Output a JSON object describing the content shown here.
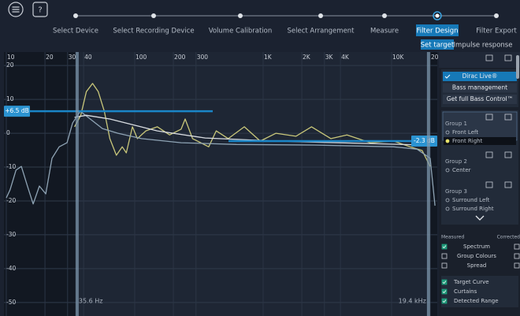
{
  "header": {
    "steps": [
      "Select Device",
      "Select Recording Device",
      "Volume Calibration",
      "Select Arrangement",
      "Measure",
      "Filter Design",
      "Filter Export"
    ],
    "active_step": 5
  },
  "tabs": [
    "Set target",
    "Impulse response"
  ],
  "active_tab": 0,
  "chart_data": {
    "type": "line",
    "xscale": "log",
    "xlim": [
      10,
      22700
    ],
    "ylim": [
      -54,
      24
    ],
    "grid": true,
    "xticks": [
      10,
      20,
      30,
      40,
      100,
      200,
      300,
      {
        "value": 1000,
        "label": "1K"
      },
      {
        "value": 2000,
        "label": "2K"
      },
      {
        "value": 3000,
        "label": "3K"
      },
      {
        "value": 4000,
        "label": "4K"
      },
      {
        "value": 10000,
        "label": "10K"
      },
      {
        "value": 20000,
        "label": "20K"
      }
    ],
    "yticks": [
      20,
      10,
      0,
      -10,
      -20,
      -30,
      -40,
      -50
    ],
    "series": [
      {
        "color": "#c9c77a",
        "x": [
          34,
          38,
          42,
          47,
          52,
          58,
          64,
          72,
          80,
          86,
          96,
          105,
          122,
          150,
          187,
          230,
          247,
          282,
          377,
          431,
          535,
          714,
          950,
          1260,
          1800,
          2380,
          3370,
          4500,
          6840,
          10400,
          13900,
          17300,
          20000
        ],
        "values": [
          1.9,
          5.3,
          12.3,
          14.7,
          12.3,
          6.5,
          -1.6,
          -6.5,
          -4,
          -5.8,
          1.9,
          -1.6,
          0.7,
          1.9,
          -0.5,
          1.2,
          4.2,
          -1.6,
          -4,
          0.7,
          -1.6,
          1.9,
          -2.3,
          0,
          -0.9,
          1.9,
          -1.6,
          -0.5,
          -2.8,
          -2.3,
          -4,
          -5.1,
          -9.8
        ]
      },
      {
        "color": "#8fa4b5",
        "x": [
          10,
          10.7,
          11.9,
          13.1,
          14.6,
          16.2,
          18.1,
          20.3,
          22.7,
          25.8,
          29.7,
          32.8,
          37.7,
          45,
          56,
          74,
          113,
          230,
          620,
          2540,
          10400,
          15800,
          20000,
          21800
        ],
        "values": [
          -19.1,
          -16.7,
          -10.9,
          -9.8,
          -15.6,
          -20.9,
          -15.6,
          -17.9,
          -7.4,
          -4,
          -2.8,
          3,
          6.5,
          4.2,
          1.4,
          0,
          -1.6,
          -2.8,
          -3.3,
          -3.5,
          -4,
          -4.7,
          -7.4,
          -21.4
        ]
      },
      {
        "color": "#d9dde2",
        "x": [
          34,
          42,
          64,
          150,
          354,
          1260,
          18400
        ],
        "values": [
          4.7,
          5.3,
          4.2,
          0.7,
          -1.4,
          -2.3,
          -3.5
        ]
      }
    ],
    "markers": [
      {
        "value": 6.5,
        "label": "+6.5 dB"
      },
      {
        "value": -2.3,
        "label": "-2.3 dB"
      }
    ],
    "curtains": [
      {
        "value": 35.6,
        "label": "35.6 Hz"
      },
      {
        "value": 19400,
        "label": "19.4 kHz"
      }
    ]
  },
  "panel": {
    "modes": [
      {
        "label": "Dirac Live®",
        "checked": true
      },
      {
        "label": "Bass management",
        "checked": false
      },
      {
        "label": "Get full Bass Control™",
        "checked": false
      }
    ],
    "groups": [
      {
        "name": "Group 1",
        "channels": [
          {
            "name": "Front Left",
            "selected": false
          },
          {
            "name": "Front Right",
            "selected": true
          }
        ]
      },
      {
        "name": "Group 2",
        "channels": [
          {
            "name": "Center",
            "selected": false
          }
        ]
      },
      {
        "name": "Group 3",
        "channels": [
          {
            "name": "Surround Left",
            "selected": false
          },
          {
            "name": "Surround Right",
            "selected": false
          }
        ]
      }
    ],
    "columns": [
      "Measured",
      "Corrected"
    ],
    "options": [
      {
        "label": "Spectrum",
        "measured": true,
        "corrected": false
      },
      {
        "label": "Group Colours",
        "measured": false,
        "corrected": false
      },
      {
        "label": "Spread",
        "measured": false,
        "corrected": false
      },
      {
        "label": "Target Curve",
        "measured": true
      },
      {
        "label": "Curtains",
        "measured": true
      },
      {
        "label": "Detected Range",
        "measured": true
      }
    ]
  }
}
